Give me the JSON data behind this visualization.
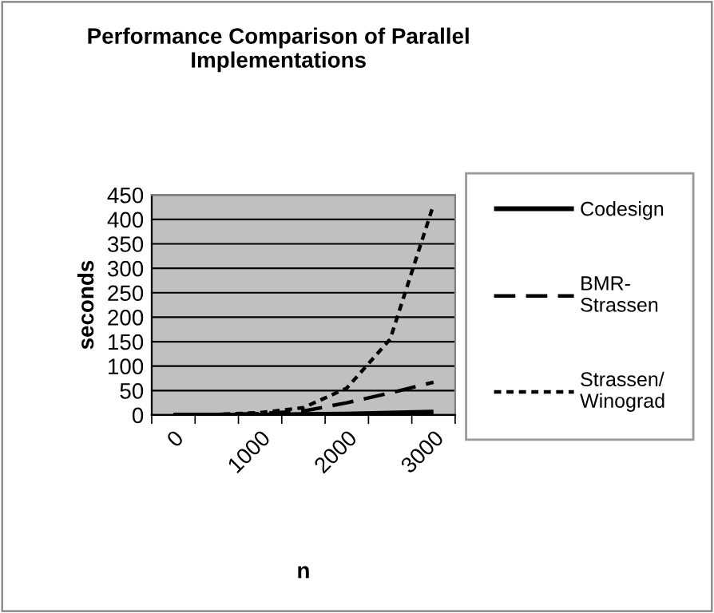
{
  "chart_data": {
    "type": "line",
    "title": "Performance Comparison of Parallel Implementations",
    "xlabel": "n",
    "ylabel": "seconds",
    "categories": [
      "0",
      null,
      "1000",
      null,
      "2000",
      null,
      "3000"
    ],
    "series": [
      {
        "name": "Codesign",
        "color": "#000000",
        "line_style": "solid",
        "values": [
          0,
          0,
          0,
          1,
          2,
          4,
          6
        ]
      },
      {
        "name": "BMR-Strassen",
        "color": "#000000",
        "line_style": "dashed",
        "values": [
          0,
          1,
          3,
          8,
          25,
          45,
          67
        ]
      },
      {
        "name": "Strassen/Winograd",
        "color": "#000000",
        "line_style": "dotted",
        "values": [
          0,
          1,
          5,
          15,
          55,
          155,
          430
        ]
      }
    ],
    "ylim": [
      0,
      450
    ],
    "yticks": [
      0,
      50,
      100,
      150,
      200,
      250,
      300,
      350,
      400,
      450
    ],
    "grid": "y",
    "legend": "right",
    "marker": "none"
  }
}
